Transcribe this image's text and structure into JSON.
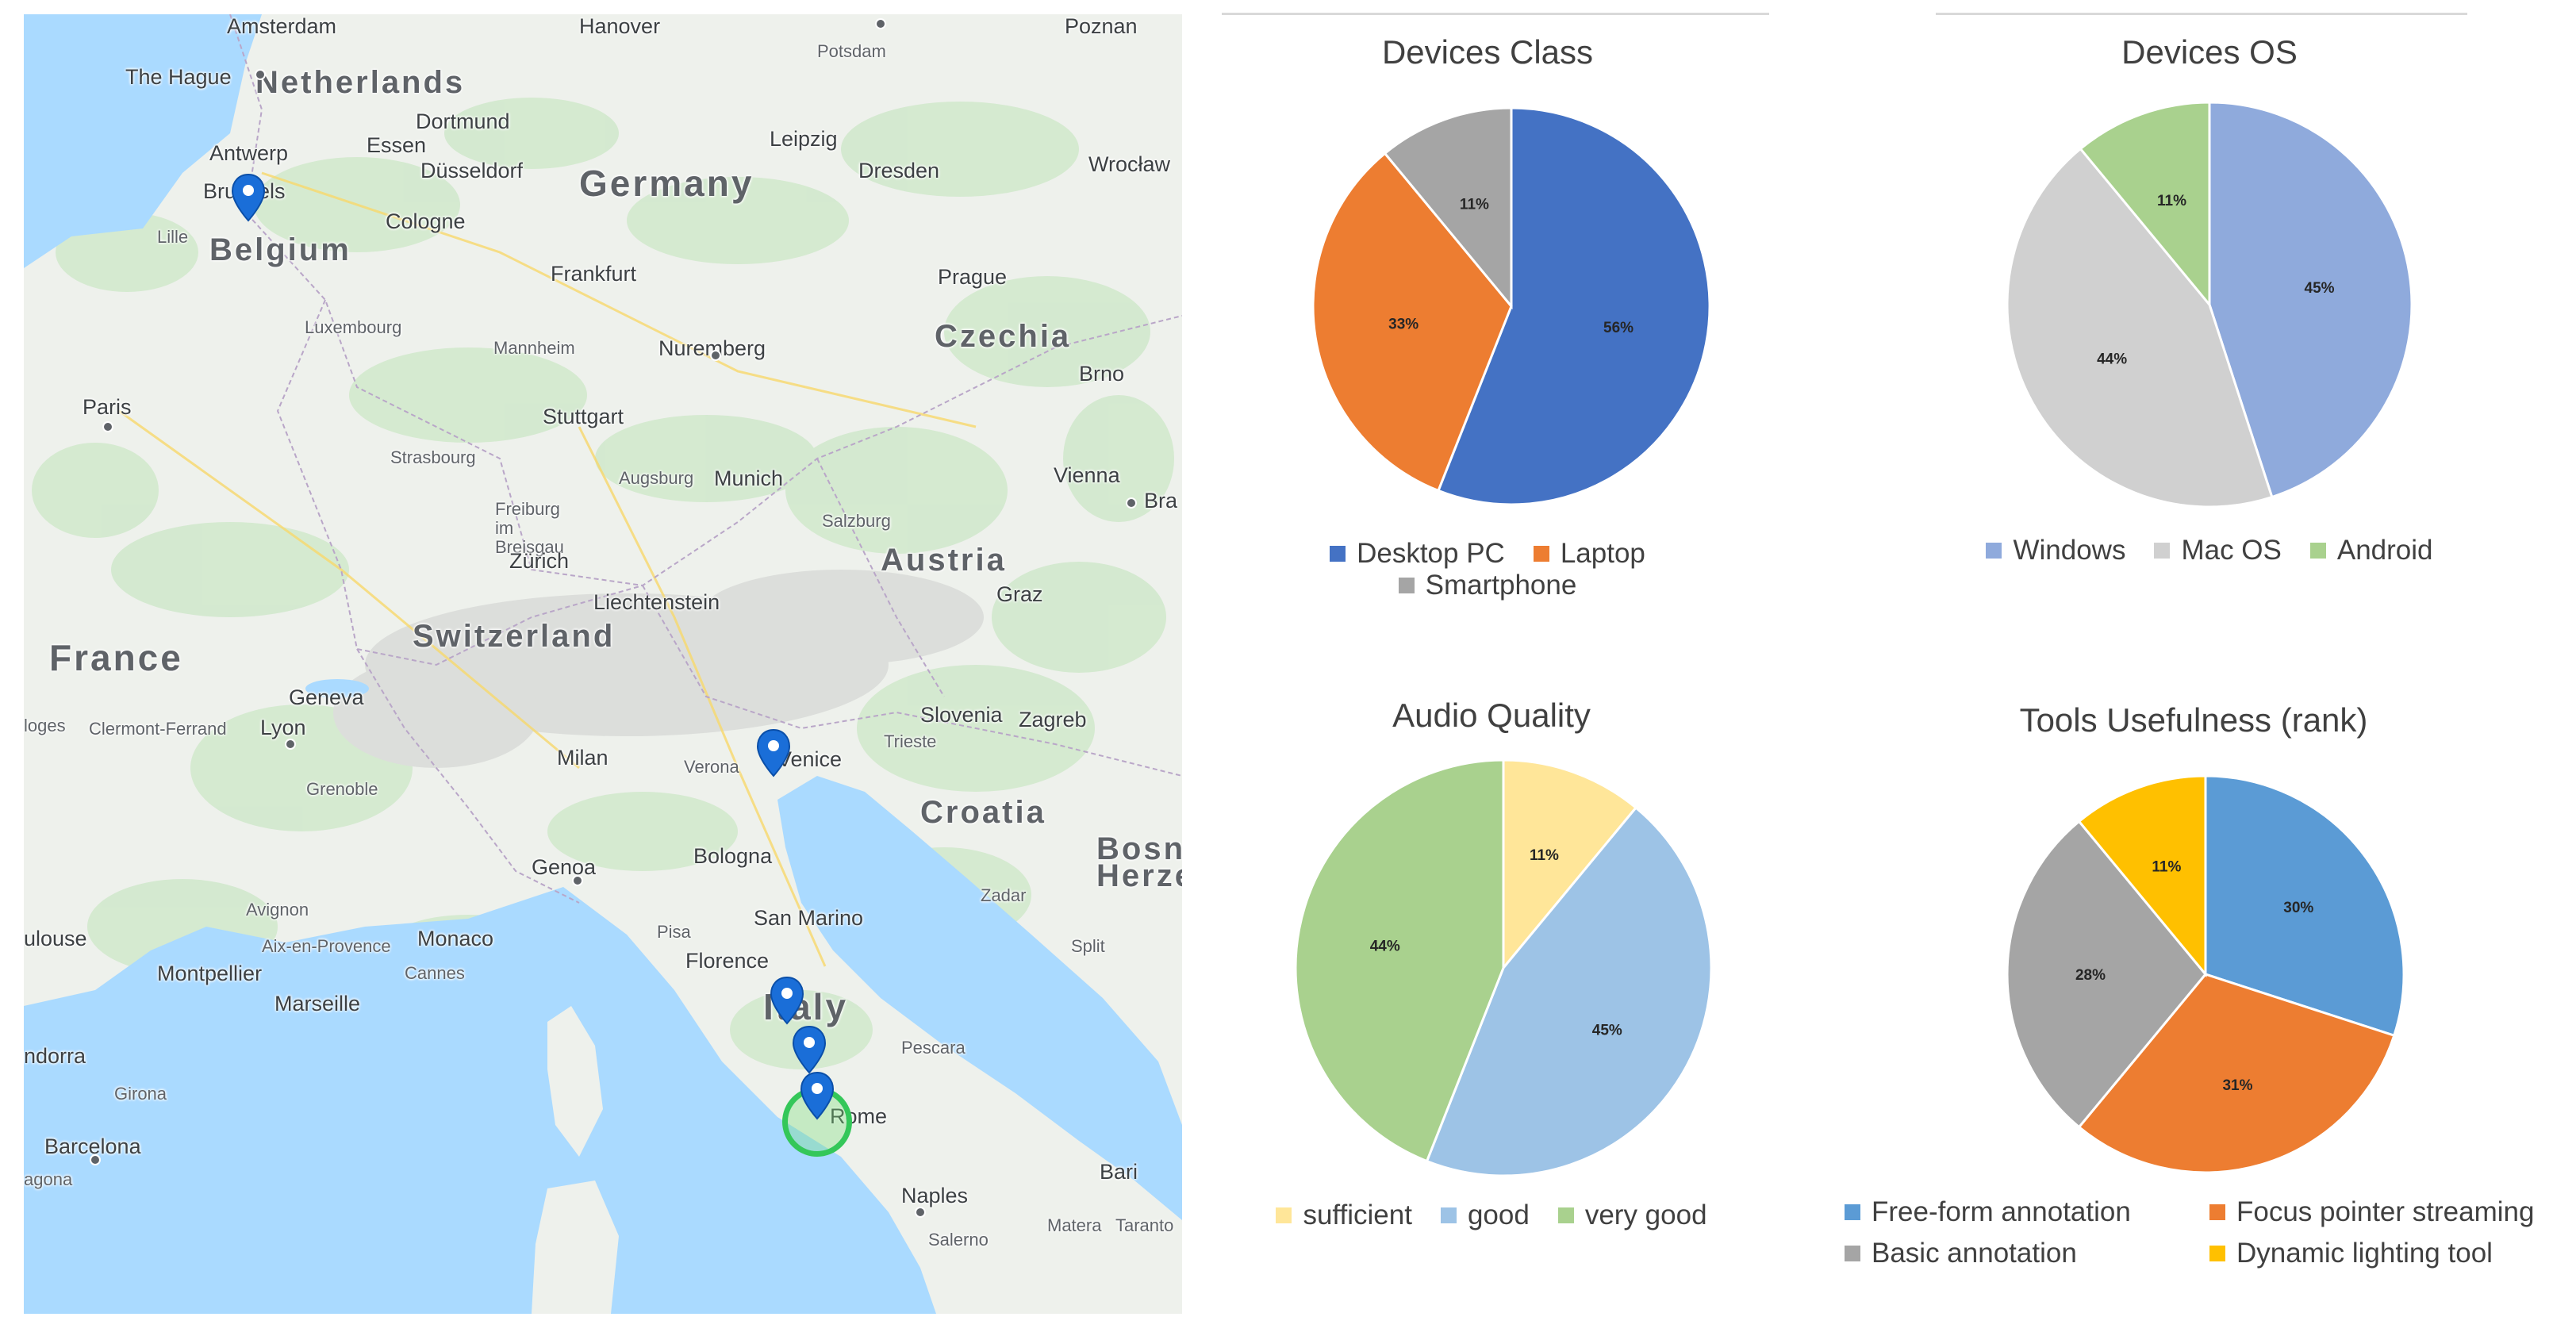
{
  "map": {
    "countries": [
      {
        "id": "netherlands",
        "name": "Netherlands"
      },
      {
        "id": "germany",
        "name": "Germany"
      },
      {
        "id": "belgium",
        "name": "Belgium"
      },
      {
        "id": "czechia",
        "name": "Czechia"
      },
      {
        "id": "france",
        "name": "France"
      },
      {
        "id": "switzerland",
        "name": "Switzerland"
      },
      {
        "id": "austria",
        "name": "Austria"
      },
      {
        "id": "liechtenstein",
        "name": "Liechtenstein"
      },
      {
        "id": "slovenia",
        "name": "Slovenia"
      },
      {
        "id": "croatia",
        "name": "Croatia"
      },
      {
        "id": "italy",
        "name": "Italy"
      },
      {
        "id": "monaco",
        "name": "Monaco"
      },
      {
        "id": "san-marino",
        "name": "San Marino"
      },
      {
        "id": "bosnia",
        "name": "Bosni"
      },
      {
        "id": "herze",
        "name": "Herze"
      }
    ],
    "cities": [
      "Amsterdam",
      "Hanover",
      "Poznan",
      "Potsdam",
      "The Hague",
      "Dortmund",
      "Leipzig",
      "Essen",
      "Düsseldorf",
      "Dresden",
      "Wrocław",
      "Antwerp",
      "Brussels",
      "Cologne",
      "Lille",
      "Frankfurt",
      "Prague",
      "Luxembourg",
      "Mannheim",
      "Nuremberg",
      "Paris",
      "Brno",
      "Stuttgart",
      "Strasbourg",
      "Augsburg",
      "Munich",
      "Vienna",
      "Bra",
      "Freiburg im Breisgau",
      "Salzburg",
      "Zürich",
      "Graz",
      "Geneva",
      "Lyon",
      "Clermont-Ferrand",
      "Zagreb",
      "Milan",
      "Verona",
      "Venice",
      "Trieste",
      "Grenoble",
      "Bologna",
      "Genoa",
      "Zadar",
      "Avignon",
      "Pisa",
      "Florence",
      "Aix-en-Provence",
      "Montpellier",
      "Cannes",
      "Marseille",
      "Split",
      "Pescara",
      "Rome",
      "Girona",
      "Barcelona",
      "Naples",
      "Bari",
      "Matera",
      "Taranto",
      "Salerno",
      "ulouse",
      "ndorra",
      "agona",
      "loges"
    ],
    "colors": {
      "water": "#aadaff",
      "land": "#eef1ec",
      "forest": "#d4ead0",
      "marker": "#1a6ed8",
      "current_location": "#34c759"
    }
  },
  "charts": [
    {
      "id": "devices-class",
      "chart_data": {
        "type": "pie",
        "title": "Devices Class",
        "categories": [
          "Desktop PC",
          "Laptop",
          "Smartphone"
        ],
        "values": [
          56,
          33,
          11
        ],
        "labels": [
          "56%",
          "33%",
          "11%"
        ],
        "colors": [
          "#4472c4",
          "#ed7d31",
          "#a5a5a5"
        ],
        "legend": "bottom"
      }
    },
    {
      "id": "devices-os",
      "chart_data": {
        "type": "pie",
        "title": "Devices OS",
        "categories": [
          "Windows",
          "Mac OS",
          "Android"
        ],
        "values": [
          45,
          44,
          11
        ],
        "labels": [
          "45%",
          "44%",
          "11%"
        ],
        "colors": [
          "#8faadc",
          "#d0d0d0",
          "#a9d18e"
        ],
        "legend": "bottom"
      }
    },
    {
      "id": "audio-quality",
      "chart_data": {
        "type": "pie",
        "title": "Audio Quality",
        "categories": [
          "sufficient",
          "good",
          "very good"
        ],
        "values": [
          11,
          45,
          44
        ],
        "labels": [
          "11%",
          "45%",
          "44%"
        ],
        "colors": [
          "#ffe699",
          "#9dc3e6",
          "#a9d18e"
        ],
        "legend": "bottom"
      }
    },
    {
      "id": "tools-usefulness",
      "chart_data": {
        "type": "pie",
        "title": "Tools Usefulness (rank)",
        "categories": [
          "Free-form annotation",
          "Focus pointer streaming",
          "Basic annotation",
          "Dynamic lighting tool"
        ],
        "values": [
          30,
          31,
          28,
          11
        ],
        "labels": [
          "30%",
          "31%",
          "28%",
          "11%"
        ],
        "colors": [
          "#5b9bd5",
          "#ed7d31",
          "#a5a5a5",
          "#ffc000"
        ],
        "legend": "bottom"
      }
    }
  ]
}
